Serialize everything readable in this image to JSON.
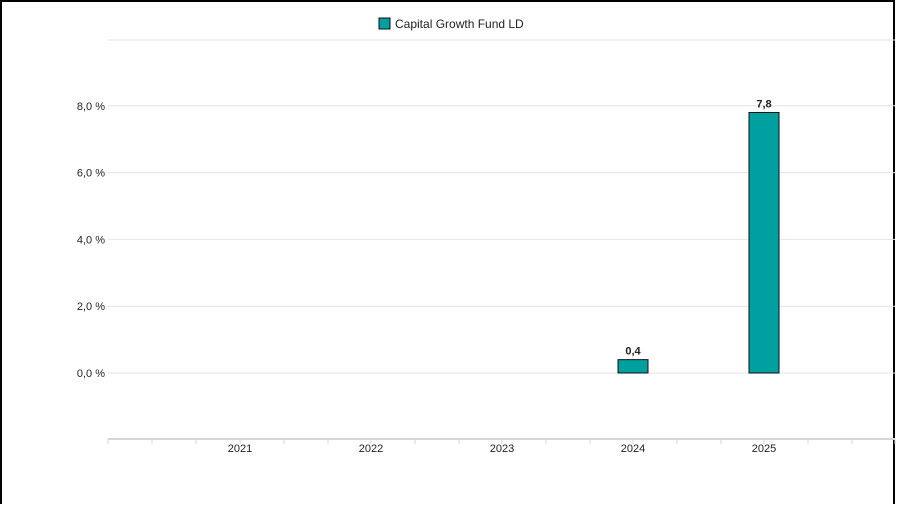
{
  "chart_data": {
    "type": "bar",
    "categories": [
      "2021",
      "2022",
      "2023",
      "2024",
      "2025"
    ],
    "series": [
      {
        "name": "Capital Growth Fund LD",
        "values": [
          null,
          null,
          null,
          0.4,
          7.8
        ],
        "labels": [
          "",
          "",
          "",
          "0,4",
          "7,8"
        ],
        "color": "#00a0a0"
      }
    ],
    "y_tick_labels": [
      "0,0 %",
      "2,0 %",
      "4,0 %",
      "6,0 %",
      "8,0 %"
    ],
    "y_tick_values": [
      0,
      2,
      4,
      6,
      8
    ],
    "ylim": [
      -2,
      10
    ],
    "grid": true,
    "legend_position": "top-center",
    "title": "",
    "xlabel": "",
    "ylabel": ""
  }
}
